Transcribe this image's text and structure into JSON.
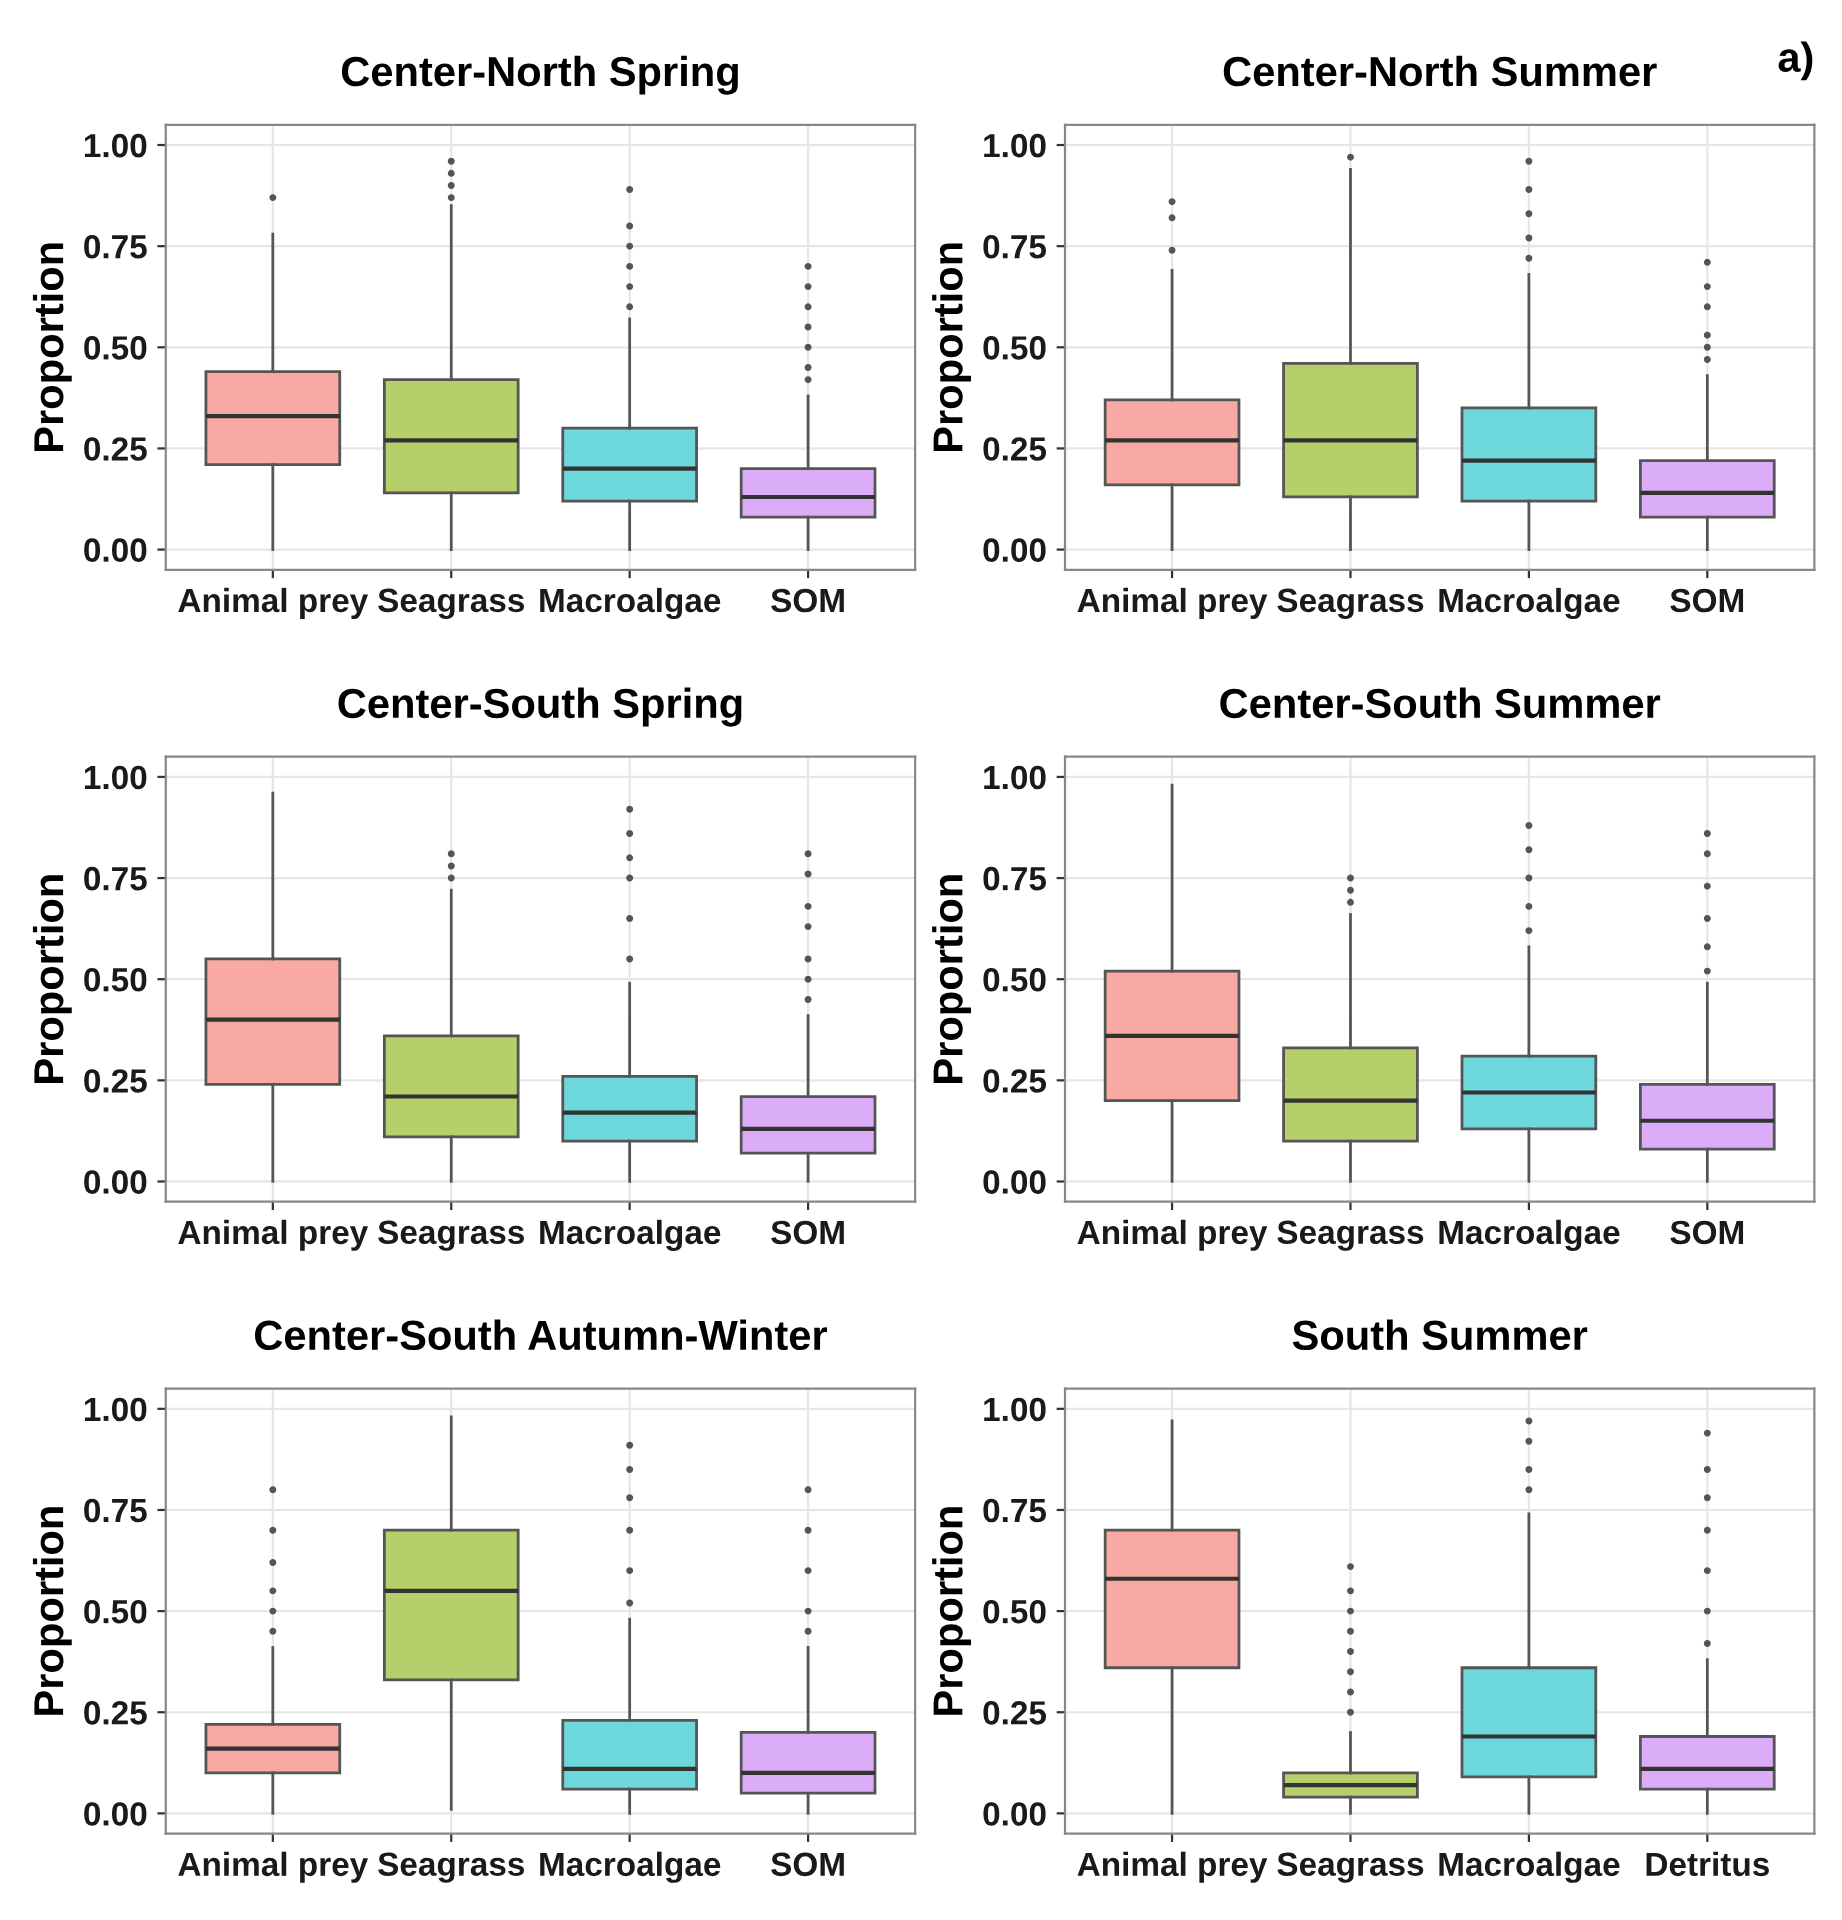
{
  "chart_data": [
    {
      "type": "box",
      "title": "Center-North Spring",
      "ylabel": "Proportion",
      "categories": [
        "Animal prey",
        "Seagrass",
        "Macroalgae",
        "SOM"
      ],
      "colors": [
        "#f8a9a4",
        "#b5cf6b",
        "#6dd8dc",
        "#dbacf8"
      ],
      "ylim": [
        -0.05,
        1.05
      ],
      "yticks": [
        {
          "value": 0,
          "label": "0.00"
        },
        {
          "value": 0.25,
          "label": "0.25"
        },
        {
          "value": 0.5,
          "label": "0.50"
        },
        {
          "value": 0.75,
          "label": "0.75"
        },
        {
          "value": 1,
          "label": "1.00"
        }
      ],
      "grid": true,
      "boxes": [
        {
          "low": 0,
          "q1": 0.21,
          "median": 0.33,
          "q3": 0.44,
          "high": 0.78,
          "outliers": [
            0.87
          ]
        },
        {
          "low": 0,
          "q1": 0.14,
          "median": 0.27,
          "q3": 0.42,
          "high": 0.85,
          "outliers": [
            0.87,
            0.9,
            0.93,
            0.96
          ]
        },
        {
          "low": 0,
          "q1": 0.12,
          "median": 0.2,
          "q3": 0.3,
          "high": 0.57,
          "outliers": [
            0.6,
            0.65,
            0.7,
            0.75,
            0.8,
            0.89
          ]
        },
        {
          "low": 0,
          "q1": 0.08,
          "median": 0.13,
          "q3": 0.2,
          "high": 0.38,
          "outliers": [
            0.42,
            0.45,
            0.5,
            0.55,
            0.6,
            0.65,
            0.7
          ]
        }
      ]
    },
    {
      "type": "box",
      "title": "Center-North Summer",
      "ylabel": "Proportion",
      "annotations": [
        "a)"
      ],
      "categories": [
        "Animal prey",
        "Seagrass",
        "Macroalgae",
        "SOM"
      ],
      "colors": [
        "#f8a9a4",
        "#b5cf6b",
        "#6dd8dc",
        "#dbacf8"
      ],
      "ylim": [
        -0.05,
        1.05
      ],
      "yticks": [
        {
          "value": 0,
          "label": "0.00"
        },
        {
          "value": 0.25,
          "label": "0.25"
        },
        {
          "value": 0.5,
          "label": "0.50"
        },
        {
          "value": 0.75,
          "label": "0.75"
        },
        {
          "value": 1,
          "label": "1.00"
        }
      ],
      "grid": true,
      "boxes": [
        {
          "low": 0,
          "q1": 0.16,
          "median": 0.27,
          "q3": 0.37,
          "high": 0.69,
          "outliers": [
            0.74,
            0.82,
            0.86
          ]
        },
        {
          "low": 0,
          "q1": 0.13,
          "median": 0.27,
          "q3": 0.46,
          "high": 0.94,
          "outliers": [
            0.97
          ]
        },
        {
          "low": 0,
          "q1": 0.12,
          "median": 0.22,
          "q3": 0.35,
          "high": 0.68,
          "outliers": [
            0.72,
            0.77,
            0.83,
            0.89,
            0.96
          ]
        },
        {
          "low": 0,
          "q1": 0.08,
          "median": 0.14,
          "q3": 0.22,
          "high": 0.43,
          "outliers": [
            0.47,
            0.5,
            0.53,
            0.6,
            0.65,
            0.71
          ]
        }
      ]
    },
    {
      "type": "box",
      "title": "Center-South Spring",
      "ylabel": "Proportion",
      "categories": [
        "Animal prey",
        "Seagrass",
        "Macroalgae",
        "SOM"
      ],
      "colors": [
        "#f8a9a4",
        "#b5cf6b",
        "#6dd8dc",
        "#dbacf8"
      ],
      "ylim": [
        -0.05,
        1.05
      ],
      "yticks": [
        {
          "value": 0,
          "label": "0.00"
        },
        {
          "value": 0.25,
          "label": "0.25"
        },
        {
          "value": 0.5,
          "label": "0.50"
        },
        {
          "value": 0.75,
          "label": "0.75"
        },
        {
          "value": 1,
          "label": "1.00"
        }
      ],
      "grid": true,
      "boxes": [
        {
          "low": 0,
          "q1": 0.24,
          "median": 0.4,
          "q3": 0.55,
          "high": 0.96
        },
        {
          "low": 0,
          "q1": 0.11,
          "median": 0.21,
          "q3": 0.36,
          "high": 0.72,
          "outliers": [
            0.75,
            0.78,
            0.81
          ]
        },
        {
          "low": 0,
          "q1": 0.1,
          "median": 0.17,
          "q3": 0.26,
          "high": 0.49,
          "outliers": [
            0.55,
            0.65,
            0.75,
            0.8,
            0.86,
            0.92
          ]
        },
        {
          "low": 0,
          "q1": 0.07,
          "median": 0.13,
          "q3": 0.21,
          "high": 0.41,
          "outliers": [
            0.45,
            0.5,
            0.55,
            0.63,
            0.68,
            0.76,
            0.81
          ]
        }
      ]
    },
    {
      "type": "box",
      "title": "Center-South Summer",
      "ylabel": "Proportion",
      "categories": [
        "Animal prey",
        "Seagrass",
        "Macroalgae",
        "SOM"
      ],
      "colors": [
        "#f8a9a4",
        "#b5cf6b",
        "#6dd8dc",
        "#dbacf8"
      ],
      "ylim": [
        -0.05,
        1.05
      ],
      "yticks": [
        {
          "value": 0,
          "label": "0.00"
        },
        {
          "value": 0.25,
          "label": "0.25"
        },
        {
          "value": 0.5,
          "label": "0.50"
        },
        {
          "value": 0.75,
          "label": "0.75"
        },
        {
          "value": 1,
          "label": "1.00"
        }
      ],
      "grid": true,
      "boxes": [
        {
          "low": 0,
          "q1": 0.2,
          "median": 0.36,
          "q3": 0.52,
          "high": 0.98
        },
        {
          "low": 0,
          "q1": 0.1,
          "median": 0.2,
          "q3": 0.33,
          "high": 0.66,
          "outliers": [
            0.69,
            0.72,
            0.75
          ]
        },
        {
          "low": 0,
          "q1": 0.13,
          "median": 0.22,
          "q3": 0.31,
          "high": 0.58,
          "outliers": [
            0.62,
            0.68,
            0.75,
            0.82,
            0.88
          ]
        },
        {
          "low": 0,
          "q1": 0.08,
          "median": 0.15,
          "q3": 0.24,
          "high": 0.49,
          "outliers": [
            0.52,
            0.58,
            0.65,
            0.73,
            0.81,
            0.86
          ]
        }
      ]
    },
    {
      "type": "box",
      "title": "Center-South Autumn-Winter",
      "ylabel": "Proportion",
      "categories": [
        "Animal prey",
        "Seagrass",
        "Macroalgae",
        "SOM"
      ],
      "colors": [
        "#f8a9a4",
        "#b5cf6b",
        "#6dd8dc",
        "#dbacf8"
      ],
      "ylim": [
        -0.05,
        1.05
      ],
      "yticks": [
        {
          "value": 0,
          "label": "0.00"
        },
        {
          "value": 0.25,
          "label": "0.25"
        },
        {
          "value": 0.5,
          "label": "0.50"
        },
        {
          "value": 0.75,
          "label": "0.75"
        },
        {
          "value": 1,
          "label": "1.00"
        }
      ],
      "grid": true,
      "boxes": [
        {
          "low": 0,
          "q1": 0.1,
          "median": 0.16,
          "q3": 0.22,
          "high": 0.41,
          "outliers": [
            0.45,
            0.5,
            0.55,
            0.62,
            0.7,
            0.8
          ]
        },
        {
          "low": 0.01,
          "q1": 0.33,
          "median": 0.55,
          "q3": 0.7,
          "high": 0.98
        },
        {
          "low": 0,
          "q1": 0.06,
          "median": 0.11,
          "q3": 0.23,
          "high": 0.48,
          "outliers": [
            0.52,
            0.6,
            0.7,
            0.78,
            0.85,
            0.91
          ]
        },
        {
          "low": 0,
          "q1": 0.05,
          "median": 0.1,
          "q3": 0.2,
          "high": 0.41,
          "outliers": [
            0.45,
            0.5,
            0.6,
            0.7,
            0.8
          ]
        }
      ]
    },
    {
      "type": "box",
      "title": "South Summer",
      "ylabel": "Proportion",
      "categories": [
        "Animal prey",
        "Seagrass",
        "Macroalgae",
        "Detritus"
      ],
      "colors": [
        "#f8a9a4",
        "#b5cf6b",
        "#6dd8dc",
        "#dbacf8"
      ],
      "ylim": [
        -0.05,
        1.05
      ],
      "yticks": [
        {
          "value": 0,
          "label": "0.00"
        },
        {
          "value": 0.25,
          "label": "0.25"
        },
        {
          "value": 0.5,
          "label": "0.50"
        },
        {
          "value": 0.75,
          "label": "0.75"
        },
        {
          "value": 1,
          "label": "1.00"
        }
      ],
      "grid": true,
      "boxes": [
        {
          "low": 0,
          "q1": 0.36,
          "median": 0.58,
          "q3": 0.7,
          "high": 0.97
        },
        {
          "low": 0,
          "q1": 0.04,
          "median": 0.07,
          "q3": 0.1,
          "high": 0.2,
          "outliers": [
            0.25,
            0.3,
            0.35,
            0.4,
            0.45,
            0.5,
            0.55,
            0.61
          ]
        },
        {
          "low": 0,
          "q1": 0.09,
          "median": 0.19,
          "q3": 0.36,
          "high": 0.74,
          "outliers": [
            0.8,
            0.85,
            0.92,
            0.97
          ]
        },
        {
          "low": 0,
          "q1": 0.06,
          "median": 0.11,
          "q3": 0.19,
          "high": 0.38,
          "outliers": [
            0.42,
            0.5,
            0.6,
            0.7,
            0.78,
            0.85,
            0.94
          ]
        }
      ]
    }
  ]
}
